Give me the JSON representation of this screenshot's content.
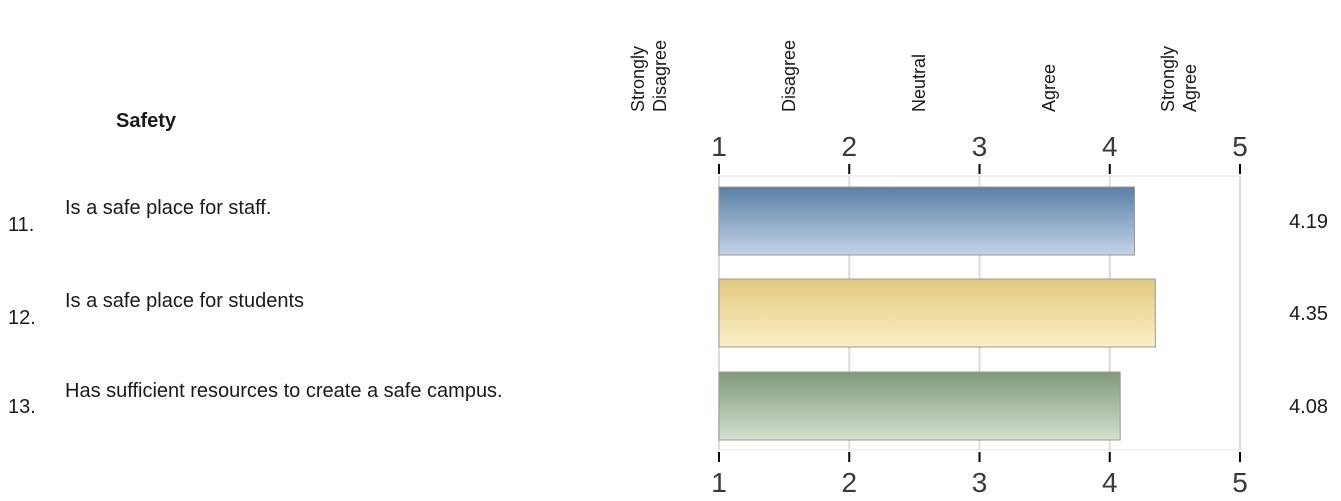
{
  "section": {
    "title": "Safety"
  },
  "items": [
    {
      "number": "11.",
      "text": "Is a safe place for staff."
    },
    {
      "number": "12.",
      "text": "Is a safe place for students"
    },
    {
      "number": "13.",
      "text": "Has sufficient resources to create a safe campus."
    }
  ],
  "scale": {
    "labels": [
      {
        "lines": [
          "Strongly",
          "Disagree"
        ]
      },
      {
        "lines": [
          "Disagree"
        ]
      },
      {
        "lines": [
          "Neutral"
        ]
      },
      {
        "lines": [
          "Agree"
        ]
      },
      {
        "lines": [
          "Strongly",
          "Agree"
        ]
      }
    ]
  },
  "chart_data": {
    "type": "bar",
    "orientation": "horizontal",
    "categories": [
      "11.",
      "12.",
      "13."
    ],
    "values": [
      4.19,
      4.35,
      4.08
    ],
    "value_labels": [
      "4.19",
      "4.35",
      "4.08"
    ],
    "xlim": [
      1,
      5
    ],
    "xticks": [
      1,
      2,
      3,
      4,
      5
    ],
    "xtick_labels": [
      "1",
      "2",
      "3",
      "4",
      "5"
    ],
    "grid": true,
    "colors": [
      "#6f93b8",
      "#ecd79a",
      "#95ab8e"
    ]
  }
}
